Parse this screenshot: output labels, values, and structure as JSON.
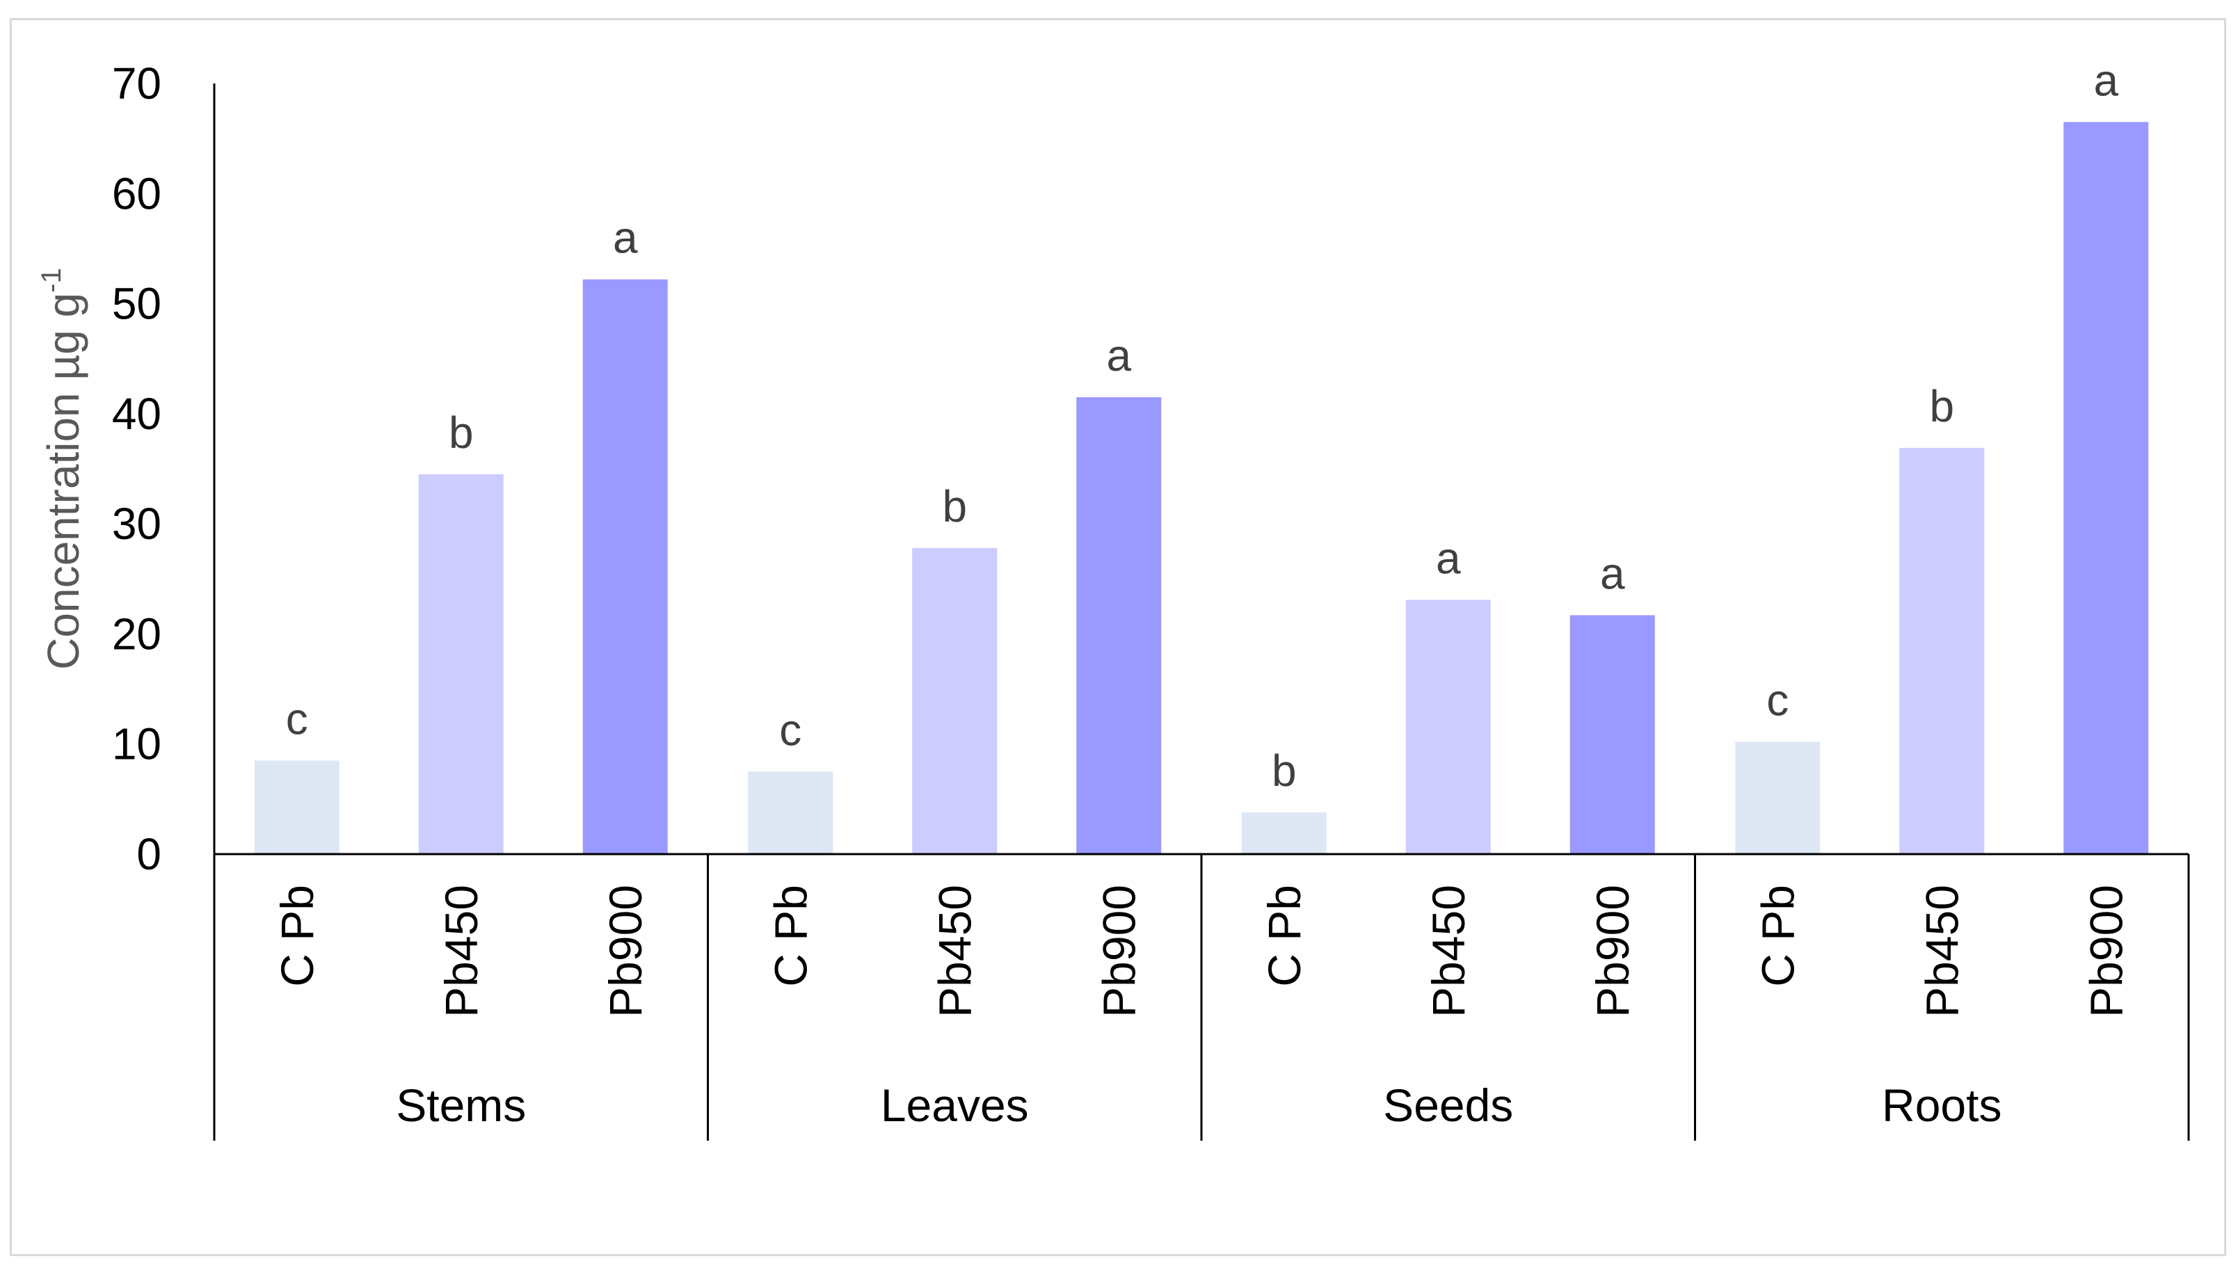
{
  "chart_data": {
    "type": "bar",
    "ylabel_main": "Concentration µg g",
    "ylabel_sup": "-1",
    "ylim": [
      0,
      70
    ],
    "yticks": [
      0,
      10,
      20,
      30,
      40,
      50,
      60,
      70
    ],
    "grid": false,
    "groups": [
      {
        "name": "Stems",
        "bars": [
          {
            "label": "C Pb",
            "value": 8.5,
            "letter": "c"
          },
          {
            "label": "Pb450",
            "value": 34.5,
            "letter": "b"
          },
          {
            "label": "Pb900",
            "value": 52.2,
            "letter": "a"
          }
        ]
      },
      {
        "name": "Leaves",
        "bars": [
          {
            "label": "C Pb",
            "value": 7.5,
            "letter": "c"
          },
          {
            "label": "Pb450",
            "value": 27.8,
            "letter": "b"
          },
          {
            "label": "Pb900",
            "value": 41.5,
            "letter": "a"
          }
        ]
      },
      {
        "name": "Seeds",
        "bars": [
          {
            "label": "C Pb",
            "value": 3.8,
            "letter": "b"
          },
          {
            "label": "Pb450",
            "value": 23.1,
            "letter": "a"
          },
          {
            "label": "Pb900",
            "value": 21.7,
            "letter": "a"
          }
        ]
      },
      {
        "name": "Roots",
        "bars": [
          {
            "label": "C Pb",
            "value": 10.2,
            "letter": "c"
          },
          {
            "label": "Pb450",
            "value": 36.9,
            "letter": "b"
          },
          {
            "label": "Pb900",
            "value": 66.5,
            "letter": "a"
          }
        ]
      }
    ],
    "colors": {
      "C Pb": "#dde8f4",
      "Pb450": "#ccccff",
      "Pb900": "#9999ff"
    }
  }
}
